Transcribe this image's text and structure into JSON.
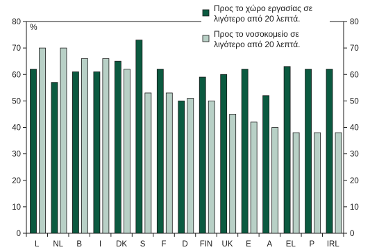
{
  "chart_data": {
    "type": "bar",
    "title": "",
    "xlabel": "",
    "ylabel": "%",
    "ylim": [
      0,
      80
    ],
    "yticks": [
      0,
      10,
      20,
      30,
      40,
      50,
      60,
      70,
      80
    ],
    "secondary_axis": true,
    "grid": false,
    "legend_position": "top-right",
    "categories": [
      "L",
      "NL",
      "B",
      "I",
      "DK",
      "S",
      "F",
      "D",
      "FIN",
      "UK",
      "E",
      "A",
      "EL",
      "P",
      "IRL"
    ],
    "series": [
      {
        "name_lines": [
          "Προς το χώρο εργασίας σε",
          "λιγότερο από 20 λεπτά."
        ],
        "color": "#0b5a40",
        "values": [
          62,
          57,
          61,
          61,
          65,
          73,
          62,
          50,
          59,
          60,
          62,
          52,
          63,
          62,
          62
        ]
      },
      {
        "name_lines": [
          "Προς το νοσοκομείο σε",
          "λιγότερο από 20 λεπτά."
        ],
        "color": "#b8d0c6",
        "values": [
          70,
          70,
          66,
          66,
          62,
          53,
          53,
          51,
          50,
          45,
          42,
          40,
          38,
          38,
          38
        ]
      }
    ]
  }
}
